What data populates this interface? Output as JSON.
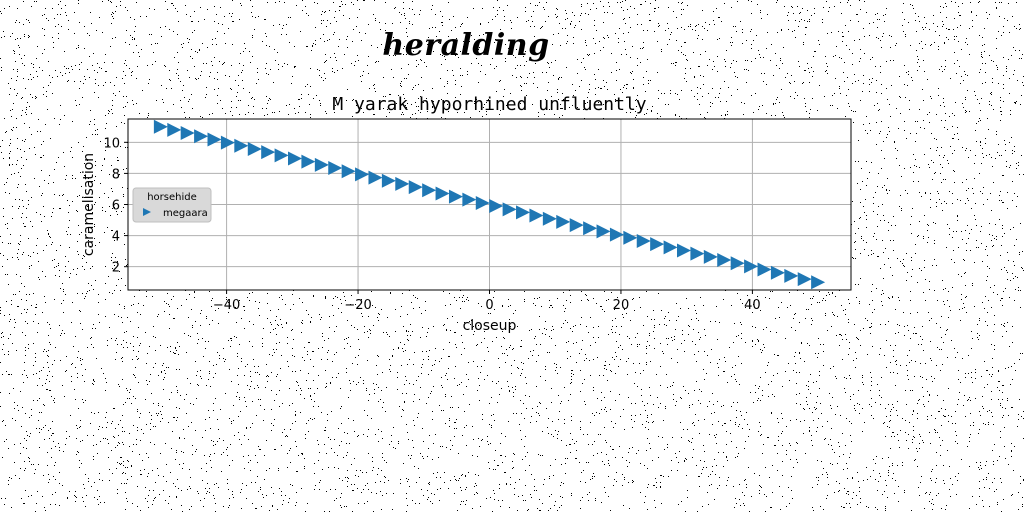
{
  "figure": {
    "suptitle": "heralding"
  },
  "chart_data": {
    "type": "scatter",
    "title": "M yarak hyporhined unfluently",
    "xlabel": "closeup",
    "ylabel": "caramelisation",
    "xlim": [
      -55,
      55
    ],
    "ylim": [
      0.5,
      11.5
    ],
    "xticks": [
      -40,
      -20,
      0,
      20,
      40
    ],
    "xtick_labels": [
      "−40",
      "−20",
      "0",
      "20",
      "40"
    ],
    "yticks": [
      2,
      4,
      6,
      8,
      10
    ],
    "ytick_labels": [
      "2",
      "4",
      "6",
      "8",
      "10"
    ],
    "grid": true,
    "legend": {
      "title": "horsehide",
      "placement": "center-left"
    },
    "marker": "triangle-right",
    "series": [
      {
        "name": "megaara",
        "color": "#1f77b4",
        "x": [
          -50,
          -47.96,
          -45.92,
          -43.88,
          -41.84,
          -39.8,
          -37.76,
          -35.71,
          -33.67,
          -31.63,
          -29.59,
          -27.55,
          -25.51,
          -23.47,
          -21.43,
          -19.39,
          -17.35,
          -15.31,
          -13.27,
          -11.22,
          -9.18,
          -7.14,
          -5.1,
          -3.06,
          -1.02,
          1.02,
          3.06,
          5.1,
          7.14,
          9.18,
          11.22,
          13.27,
          15.31,
          17.35,
          19.39,
          21.43,
          23.47,
          25.51,
          27.55,
          29.59,
          31.63,
          33.67,
          35.71,
          37.76,
          39.8,
          41.84,
          43.88,
          45.92,
          47.96,
          50
        ],
        "y": [
          11.0,
          10.8,
          10.6,
          10.39,
          10.18,
          9.98,
          9.78,
          9.57,
          9.37,
          9.16,
          8.96,
          8.76,
          8.55,
          8.35,
          8.14,
          7.94,
          7.73,
          7.53,
          7.33,
          7.12,
          6.92,
          6.71,
          6.51,
          6.31,
          6.1,
          5.9,
          5.69,
          5.49,
          5.29,
          5.08,
          4.88,
          4.67,
          4.47,
          4.27,
          4.06,
          3.86,
          3.65,
          3.45,
          3.24,
          3.04,
          2.84,
          2.63,
          2.43,
          2.22,
          2.02,
          1.82,
          1.61,
          1.41,
          1.2,
          1.0
        ]
      }
    ]
  }
}
